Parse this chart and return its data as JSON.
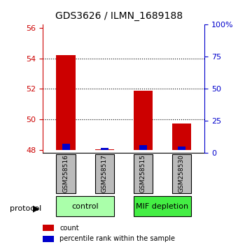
{
  "title": "GDS3626 / ILMN_1689188",
  "samples": [
    "GSM258516",
    "GSM258517",
    "GSM258515",
    "GSM258530"
  ],
  "red_values": [
    54.22,
    48.05,
    51.88,
    49.72
  ],
  "blue_values": [
    48.42,
    48.12,
    48.32,
    48.22
  ],
  "base_value": 48.0,
  "ylim_left": [
    47.8,
    56.2
  ],
  "yticks_left": [
    48,
    50,
    52,
    54,
    56
  ],
  "ylim_right": [
    0,
    100
  ],
  "yticks_right": [
    0,
    25,
    50,
    75,
    100
  ],
  "ytick_labels_right": [
    "0",
    "25",
    "50",
    "75",
    "100%"
  ],
  "bar_width": 0.5,
  "groups": [
    {
      "label": "control",
      "samples": [
        0,
        1
      ],
      "color": "#aaffaa"
    },
    {
      "label": "MIF depletion",
      "samples": [
        2,
        3
      ],
      "color": "#44ee44"
    }
  ],
  "red_color": "#cc0000",
  "blue_color": "#0000cc",
  "left_tick_color": "#cc0000",
  "right_tick_color": "#0000cc",
  "sample_box_color": "#bbbbbb",
  "dotted_grid_ticks": [
    50,
    52,
    54
  ],
  "legend_items": [
    {
      "label": "count",
      "color": "#cc0000"
    },
    {
      "label": "percentile rank within the sample",
      "color": "#0000cc"
    }
  ]
}
